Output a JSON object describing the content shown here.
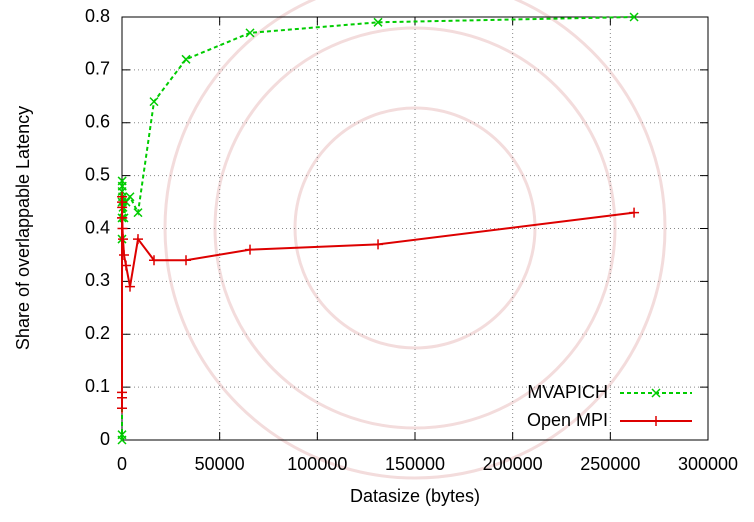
{
  "chart_data": {
    "type": "line",
    "xlabel": "Datasize (bytes)",
    "ylabel": "Share of overlappable Latency",
    "x": [
      1,
      2,
      4,
      8,
      16,
      32,
      64,
      128,
      256,
      512,
      1024,
      2048,
      4096,
      8192,
      16384,
      32768,
      65536,
      131072,
      262144
    ],
    "series": [
      {
        "name": "MVAPICH",
        "color": "#00cc00",
        "dash": true,
        "marker": "x",
        "values": [
          0,
          0.01,
          0.38,
          0.42,
          0.45,
          0.47,
          0.49,
          0.48,
          0.46,
          0.44,
          0.42,
          0.45,
          0.46,
          0.43,
          0.64,
          0.72,
          0.77,
          0.79,
          0.8
        ]
      },
      {
        "name": "Open MPI",
        "color": "#dd0000",
        "dash": false,
        "marker": "+",
        "values": [
          0.06,
          0.08,
          0.09,
          0.42,
          0.45,
          0.46,
          0.44,
          0.42,
          0.4,
          0.38,
          0.35,
          0.33,
          0.29,
          0.38,
          0.34,
          0.34,
          0.36,
          0.37,
          0.43
        ]
      }
    ],
    "xlim": [
      0,
      300000
    ],
    "xticks": [
      0,
      50000,
      100000,
      150000,
      200000,
      250000,
      300000
    ],
    "ylim": [
      0,
      0.8
    ],
    "yticks": [
      0,
      0.1,
      0.2,
      0.3,
      0.4,
      0.5,
      0.6,
      0.7,
      0.8
    ],
    "grid": true,
    "legend": "bottom-right"
  }
}
